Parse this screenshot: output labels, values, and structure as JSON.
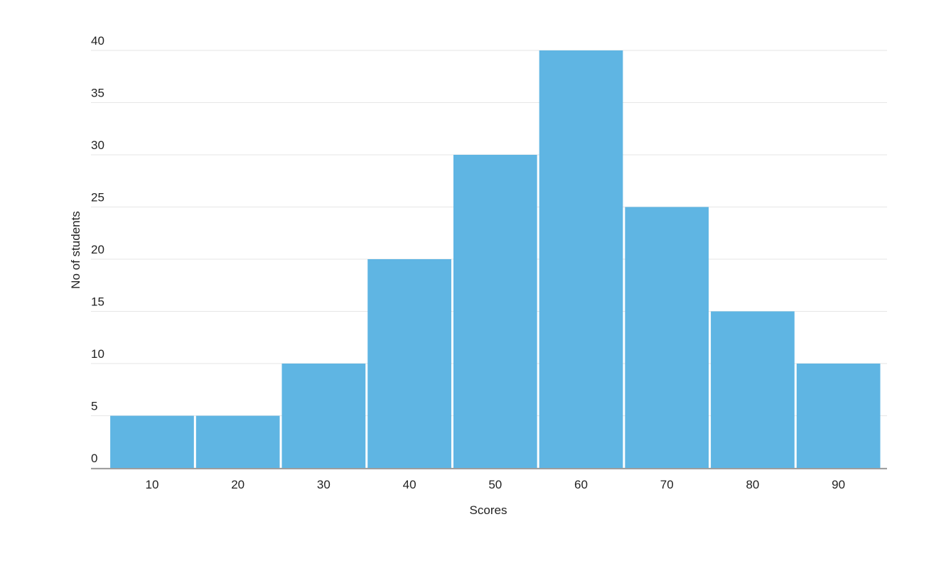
{
  "chart_data": {
    "type": "bar",
    "x_label": "Scores",
    "y_label": "No of students",
    "categories": [
      "10",
      "20",
      "30",
      "40",
      "50",
      "60",
      "70",
      "80",
      "90"
    ],
    "values": [
      5,
      5,
      10,
      20,
      30,
      40,
      25,
      15,
      10
    ],
    "color": "#5fb5e3",
    "ylim": [
      0,
      40
    ],
    "yticks": [
      0,
      5,
      10,
      15,
      20,
      25,
      30,
      35,
      40
    ],
    "grid": true
  }
}
